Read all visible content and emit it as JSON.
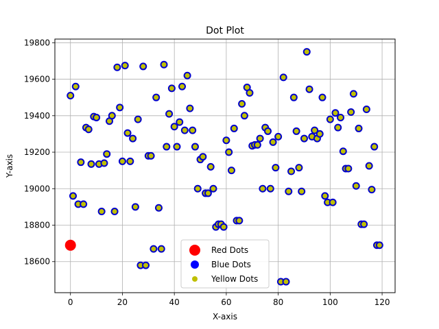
{
  "chart_data": {
    "type": "scatter",
    "title": "Dot Plot",
    "xlabel": "X-axis",
    "ylabel": "Y-axis",
    "xlim": [
      -6,
      125
    ],
    "ylim": [
      18430,
      19820
    ],
    "xticks": [
      0,
      20,
      40,
      60,
      80,
      100,
      120
    ],
    "yticks": [
      18600,
      18800,
      19000,
      19200,
      19400,
      19600,
      19800
    ],
    "grid": true,
    "legend_placement": "lower-center",
    "colors": {
      "red": "#ff0000",
      "blue_edge": "#0000cc",
      "yellow_face": "#bfbf00",
      "grid": "#b0b0b0"
    },
    "series": [
      {
        "name": "Red Dots",
        "marker": "red-dot",
        "points": [
          [
            0,
            18690
          ]
        ]
      },
      {
        "name": "Blue Dots",
        "marker": "blue-dot",
        "points": []
      },
      {
        "name": "Yellow Dots",
        "marker": "yellow-dot-blue-edge",
        "points": [
          [
            0,
            19510
          ],
          [
            1,
            18960
          ],
          [
            2,
            19560
          ],
          [
            3,
            18915
          ],
          [
            4,
            19145
          ],
          [
            5,
            18915
          ],
          [
            6,
            19335
          ],
          [
            7,
            19325
          ],
          [
            8,
            19135
          ],
          [
            9,
            19395
          ],
          [
            10,
            19390
          ],
          [
            11,
            19135
          ],
          [
            12,
            18875
          ],
          [
            13,
            19140
          ],
          [
            14,
            19190
          ],
          [
            15,
            19370
          ],
          [
            16,
            19400
          ],
          [
            17,
            18875
          ],
          [
            18,
            19665
          ],
          [
            19,
            19445
          ],
          [
            20,
            19150
          ],
          [
            21,
            19675
          ],
          [
            22,
            19305
          ],
          [
            23,
            19150
          ],
          [
            24,
            19275
          ],
          [
            25,
            18900
          ],
          [
            26,
            19380
          ],
          [
            27,
            18580
          ],
          [
            28,
            19670
          ],
          [
            29,
            18580
          ],
          [
            30,
            19180
          ],
          [
            31,
            19180
          ],
          [
            32,
            18670
          ],
          [
            33,
            19500
          ],
          [
            34,
            18895
          ],
          [
            35,
            18670
          ],
          [
            36,
            19680
          ],
          [
            37,
            19230
          ],
          [
            38,
            19410
          ],
          [
            39,
            19550
          ],
          [
            40,
            19340
          ],
          [
            41,
            19230
          ],
          [
            42,
            19365
          ],
          [
            43,
            19560
          ],
          [
            44,
            19320
          ],
          [
            45,
            19620
          ],
          [
            46,
            19440
          ],
          [
            47,
            19320
          ],
          [
            48,
            19230
          ],
          [
            49,
            19000
          ],
          [
            50,
            19160
          ],
          [
            51,
            19175
          ],
          [
            52,
            18975
          ],
          [
            53,
            18975
          ],
          [
            54,
            19120
          ],
          [
            55,
            19000
          ],
          [
            56,
            18790
          ],
          [
            57,
            18805
          ],
          [
            58,
            18805
          ],
          [
            59,
            18790
          ],
          [
            60,
            19265
          ],
          [
            61,
            19200
          ],
          [
            62,
            19100
          ],
          [
            63,
            19330
          ],
          [
            64,
            18825
          ],
          [
            65,
            18825
          ],
          [
            66,
            19465
          ],
          [
            67,
            19400
          ],
          [
            68,
            19555
          ],
          [
            69,
            19525
          ],
          [
            70,
            19235
          ],
          [
            71,
            19240
          ],
          [
            72,
            19240
          ],
          [
            73,
            19275
          ],
          [
            74,
            19000
          ],
          [
            75,
            19335
          ],
          [
            76,
            19315
          ],
          [
            77,
            19000
          ],
          [
            78,
            19255
          ],
          [
            79,
            19115
          ],
          [
            80,
            19285
          ],
          [
            81,
            18490
          ],
          [
            82,
            19610
          ],
          [
            83,
            18490
          ],
          [
            84,
            18985
          ],
          [
            85,
            19095
          ],
          [
            86,
            19500
          ],
          [
            87,
            19315
          ],
          [
            88,
            19115
          ],
          [
            89,
            18985
          ],
          [
            90,
            19275
          ],
          [
            91,
            19750
          ],
          [
            92,
            19545
          ],
          [
            93,
            19285
          ],
          [
            94,
            19320
          ],
          [
            95,
            19275
          ],
          [
            96,
            19300
          ],
          [
            97,
            19500
          ],
          [
            98,
            18960
          ],
          [
            99,
            18925
          ],
          [
            100,
            19380
          ],
          [
            101,
            18925
          ],
          [
            102,
            19415
          ],
          [
            103,
            19335
          ],
          [
            104,
            19390
          ],
          [
            105,
            19205
          ],
          [
            106,
            19110
          ],
          [
            107,
            19110
          ],
          [
            108,
            19420
          ],
          [
            109,
            19520
          ],
          [
            110,
            19015
          ],
          [
            111,
            19330
          ],
          [
            112,
            18805
          ],
          [
            113,
            18805
          ],
          [
            114,
            19435
          ],
          [
            115,
            19125
          ],
          [
            116,
            18995
          ],
          [
            117,
            19230
          ],
          [
            118,
            18690
          ],
          [
            119,
            18690
          ]
        ]
      }
    ]
  }
}
